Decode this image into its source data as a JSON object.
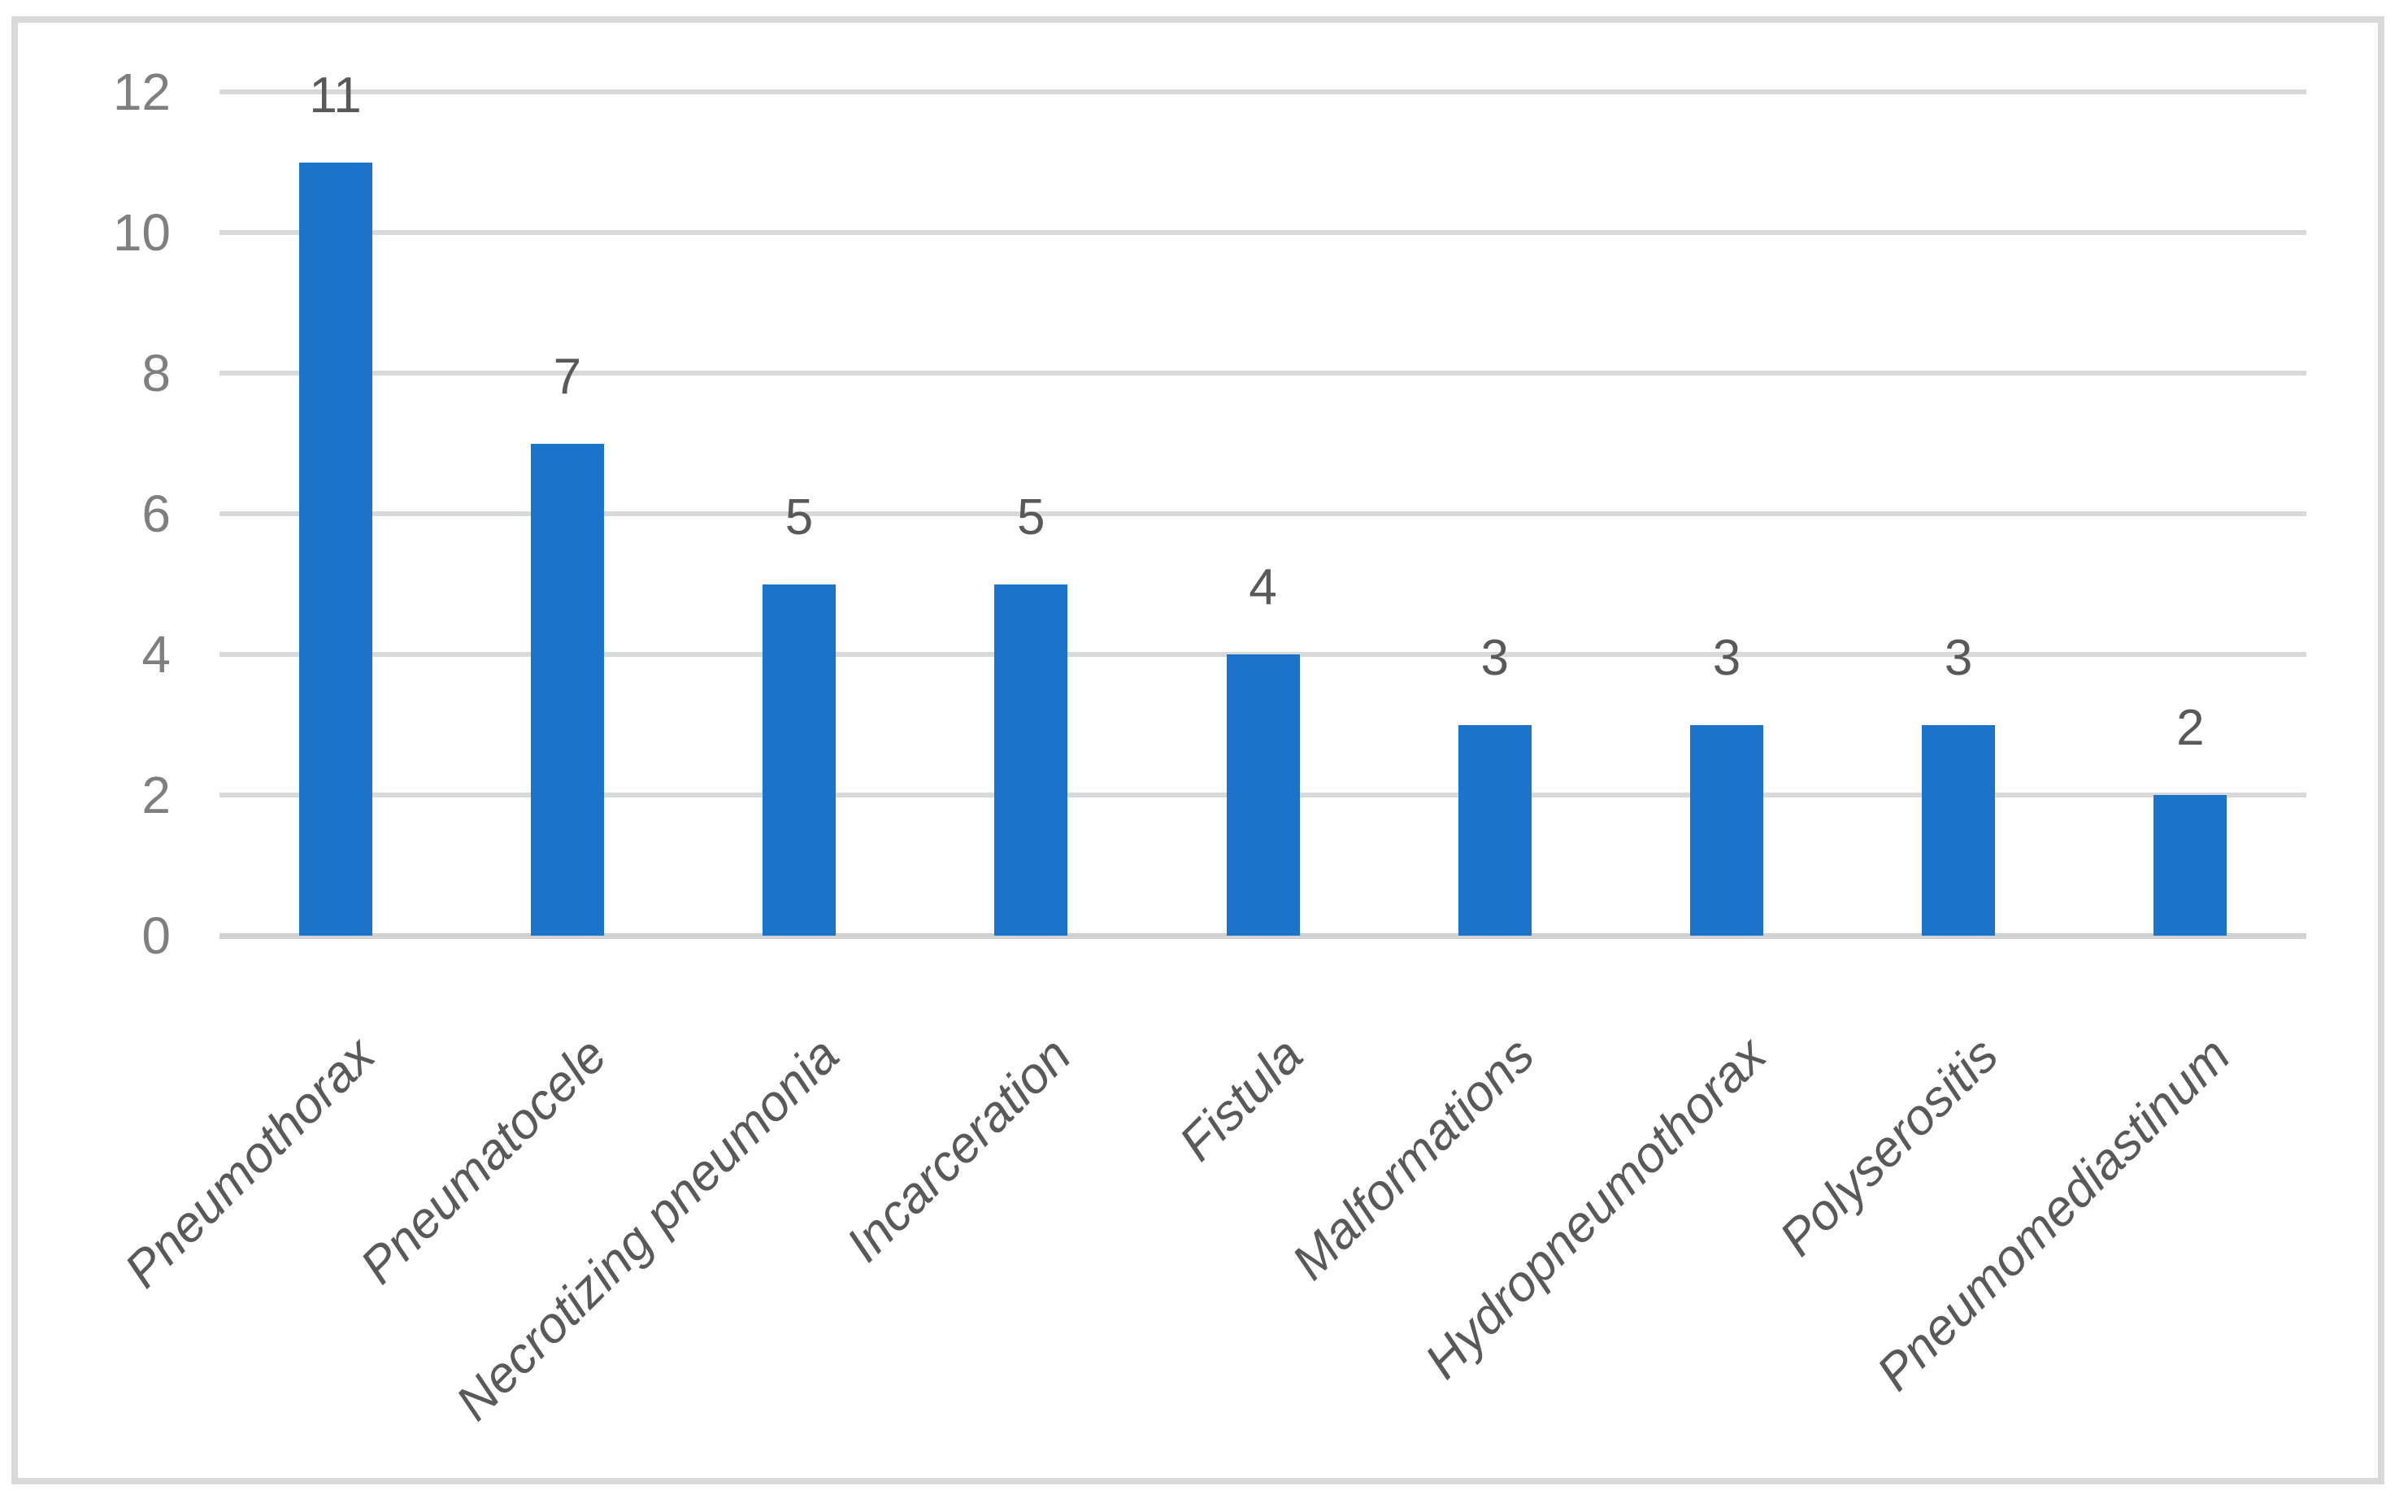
{
  "chart_data": {
    "type": "bar",
    "categories": [
      "Pneumothorax",
      "Pneumatocele",
      "Necrotizing pneumonia",
      "Incarceration",
      "Fistula",
      "Malformations",
      "Hydropneumothorax",
      "Polyserositis",
      "Pneumomediastinum"
    ],
    "values": [
      11,
      7,
      5,
      5,
      4,
      3,
      3,
      3,
      2
    ],
    "data_labels": [
      "11",
      "7",
      "5",
      "5",
      "4",
      "3",
      "3",
      "3",
      "2"
    ],
    "title": "",
    "xlabel": "",
    "ylabel": "",
    "ylim": [
      0,
      12
    ],
    "yticks": [
      0,
      2,
      4,
      6,
      8,
      10,
      12
    ],
    "grid": true,
    "legend": "none",
    "data_label_position": "outside-end",
    "category_label_rotation_deg": -45,
    "category_label_style": "italic",
    "colors": {
      "bar": "#1B74C9",
      "gridline": "#D9D9D9",
      "axis_line": "#D1D1D1",
      "frame_border": "#D9D9D9",
      "y_tick_label": "#7F7F7F",
      "data_label": "#595959",
      "category_label": "#595959",
      "background": "#FFFFFF"
    }
  }
}
